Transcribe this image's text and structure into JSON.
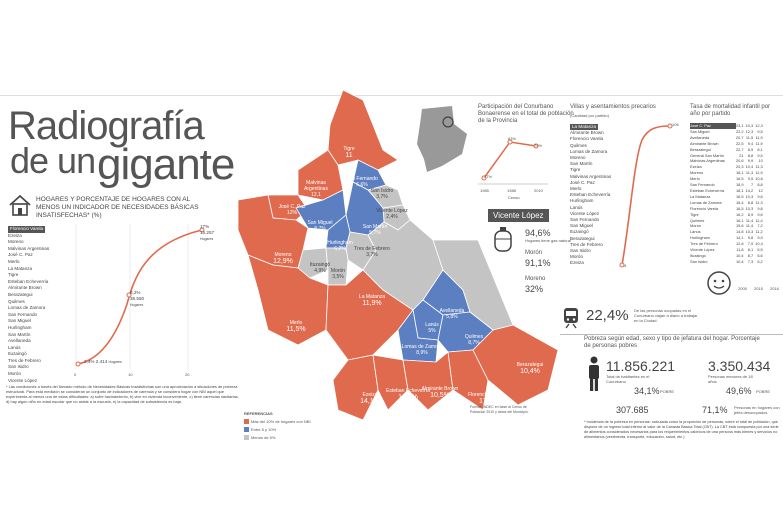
{
  "title": {
    "line1": "Radiografía",
    "line2a": "de un",
    "line2b": "gigante"
  },
  "nbi": {
    "heading": "HOGARES Y PORCENTAJE DE HOGARES CON AL MENOS UN INDICADOR DE NECESIDADES BÁSICAS INSATISFECHAS* (%)",
    "districts": [
      "Florencio Varela",
      "Ezeiza",
      "Moreno",
      "Malvinas Argentinas",
      "José C. Paz",
      "Merlo",
      "La Matanza",
      "Tigre",
      "Esteban Echeverría",
      "Almirante Brown",
      "Berazategui",
      "Quilmes",
      "Lomas de Zamora",
      "San Fernando",
      "San Miguel",
      "Hurlingham",
      "San Martín",
      "Avellaneda",
      "Lanús",
      "Ituzaingó",
      "Tres de Febrero",
      "San Isidro",
      "Morón",
      "Vicente López"
    ],
    "axis": [
      "0",
      "10",
      "20"
    ],
    "points": [
      {
        "value": "17%",
        "sub": "15.257",
        "sub2": "Hogares"
      },
      {
        "value": "8,2%",
        "sub": "36.550",
        "sub2": "Hogares"
      },
      {
        "value": "2,4%",
        "sub": "2.414",
        "sub2": "Hogares"
      }
    ],
    "footnote": "* Las condiciones a través del llamado método de Necesidades Básicas Insatisfechas son una aproximación a situaciones de pobreza estructural. Para esta medición se consideran un conjunto de indicadores de carencia y se considera hogar con NBI aquel que experimenta al menos una de estas dificultades: a) sufre hacinamiento, b) vive en vivienda inconveniente, c) tiene carencias sanitarias, d) hay algún niño en edad escolar que no asiste a la escuela, e) la capacidad de subsistencia es baja."
  },
  "map": {
    "districts": [
      {
        "name": "Tigre",
        "value": "11"
      },
      {
        "name": "Malvinas Argentinas",
        "value": "12,1"
      },
      {
        "name": "José C. Paz",
        "value": "12%"
      },
      {
        "name": "San Fernando",
        "value": "6,6%"
      },
      {
        "name": "San Isidro",
        "value": "3,7%"
      },
      {
        "name": "Vicente López",
        "value": "2,4%"
      },
      {
        "name": "San Miguel",
        "value": "8,7%"
      },
      {
        "name": "San Martín",
        "value": "5,7%"
      },
      {
        "name": "Hurlingham",
        "value": "6,2%"
      },
      {
        "name": "Tres de Febrero",
        "value": "3,7%"
      },
      {
        "name": "Ituzaingó",
        "value": "4,9%"
      },
      {
        "name": "Morón",
        "value": "3,5%"
      },
      {
        "name": "Moreno",
        "value": "12,9%"
      },
      {
        "name": "Merlo",
        "value": "11,5%"
      },
      {
        "name": "La Matanza",
        "value": "11,9%"
      },
      {
        "name": "Avellaneda",
        "value": "5,8%"
      },
      {
        "name": "Lanús",
        "value": "5%"
      },
      {
        "name": "Lomas de Zamora",
        "value": "8,9%"
      },
      {
        "name": "Quilmes",
        "value": "8,7%"
      },
      {
        "name": "Ezeiza",
        "value": "14,1%"
      },
      {
        "name": "Esteban Echeverría",
        "value": "10,8%"
      },
      {
        "name": "Almirante Brown",
        "value": "10,5%"
      },
      {
        "name": "Florencio Varela",
        "value": "17%"
      },
      {
        "name": "Berazategui",
        "value": "10,4%"
      }
    ],
    "legend_title": "REFERENCIAS",
    "legend": [
      "Más del 10% de hogares con NBI",
      "Entre 5 y 10%",
      "Menos de 5%"
    ],
    "source": "Fuente: INDEC en base al Censo de Población 2010 y datos del Municipio.",
    "colors": {
      "high": "#e06a4d",
      "mid": "#5b7fc0",
      "low": "#c4c4c4"
    }
  },
  "population": {
    "title": "Participación del Conurbano Bonaerense en el total de población de la Provincia",
    "years": [
      "1985",
      "1988",
      "2010"
    ],
    "values": [
      "27%",
      "63%",
      "79%"
    ],
    "xlabel": "Censo"
  },
  "villas": {
    "title": "Villas y asentamientos precarios",
    "subtitle": "(Cantidad por partido)",
    "districts": [
      "La Matanza",
      "Almirante Brown",
      "Florencio Varela",
      "Quilmes",
      "Lomas de Zamora",
      "Moreno",
      "San Martín",
      "Tigre",
      "Malvinas Argentinas",
      "José C. Paz",
      "Merlo",
      "Esteban Echeverría",
      "Hurlingham",
      "Lanús",
      "Vicente López",
      "San Fernando",
      "San Miguel",
      "Ituzaingó",
      "Berazategui",
      "Tres de Febrero",
      "San Isidro",
      "Morón",
      "Ezeiza"
    ],
    "top_value": "106",
    "bottom_value": "4"
  },
  "mortality": {
    "title": "Tasa de mortalidad infantil por año por partido",
    "years": [
      "2005",
      "2015",
      "2016"
    ],
    "rows": [
      [
        "José C. Paz",
        "23,1",
        "10,3",
        "12,3"
      ],
      [
        "San Miguel",
        "22,2",
        "12,3",
        "9,5"
      ],
      [
        "Avellaneda",
        "20,7",
        "11,5",
        "11,9"
      ],
      [
        "Almirante Brown",
        "22,5",
        "9,4",
        "11,9"
      ],
      [
        "Berazategui",
        "22,7",
        "8,9",
        "8,1"
      ],
      [
        "General San Martín",
        "21",
        "8,8",
        "9,5"
      ],
      [
        "Malvinas Argentinas",
        "20,6",
        "9,9",
        "10"
      ],
      [
        "Ezeiza",
        "20,3",
        "10,4",
        "11,3"
      ],
      [
        "Moreno",
        "18,1",
        "11,3",
        "11,9"
      ],
      [
        "Merlo",
        "16,5",
        "9,5",
        "10,6"
      ],
      [
        "San Fernando",
        "18,9",
        "7",
        "8,8"
      ],
      [
        "Esteban Echeverría",
        "18,1",
        "14,2",
        "12"
      ],
      [
        "La Matanza",
        "16,5",
        "10,3",
        "9,6"
      ],
      [
        "Lomas de Zamora",
        "16,4",
        "8,8",
        "11,3"
      ],
      [
        "Florencio Varela",
        "16,5",
        "10,3",
        "9,8"
      ],
      [
        "Tigre",
        "16,2",
        "8,9",
        "9,6"
      ],
      [
        "Quilmes",
        "16,1",
        "11,4",
        "11,4"
      ],
      [
        "Morón",
        "15,6",
        "11,4",
        "7,2"
      ],
      [
        "Lanús",
        "14,8",
        "10,3",
        "11,2"
      ],
      [
        "Hurlingham",
        "14,1",
        "9,8",
        "9,9"
      ],
      [
        "Tres de Febrero",
        "12,8",
        "7,9",
        "10,4"
      ],
      [
        "Vicente López",
        "11,8",
        "8,1",
        "5,5"
      ],
      [
        "Ituzaingó",
        "10,4",
        "8,7",
        "6,6"
      ],
      [
        "San Isidro",
        "10,4",
        "7,3",
        "6,2"
      ]
    ]
  },
  "vicente": {
    "label": "Vicente López",
    "v1": "94,6%",
    "v1_text": "Hogares tiene gas natural",
    "v2_name": "Morón",
    "v2": "91,1%",
    "v3_name": "Moreno",
    "v3": "32%"
  },
  "workers": {
    "value": "22,4%",
    "text": "De las personas ocupadas en el Conurbano viajan a diario a trabajar en la Ciudad."
  },
  "poverty": {
    "title": "Pobreza según edad, sexo y tipo de jefatura del hogar. Porcentaje de personas pobres",
    "total": "11.856.221",
    "total_text": "Total de habitantes en el Conurbano",
    "children": "3.350.434",
    "children_text": "Personas menores de 18 años",
    "pct_total": "34,1%",
    "pct_children": "49,6%",
    "pobre_label": "POBRE",
    "pobre_label2": "POBRE",
    "households": "307.685",
    "households_pct": "71,1%",
    "households_text": "Personas en hogares con jefes desocupados",
    "footnote": "* Incidencia de la pobreza en personas: calculada como la proporción de personas, sobre el total de población, que dispone de un ingreso total inferior al valor de la Canasta Básica Total (CBT). La CBT está compuesta por una serie de alimentos considerados necesarios para los requerimientos calóricos de una persona más bienes y servicios no alimentarios (vestimenta, transporte, educación, salud, etc.)"
  }
}
